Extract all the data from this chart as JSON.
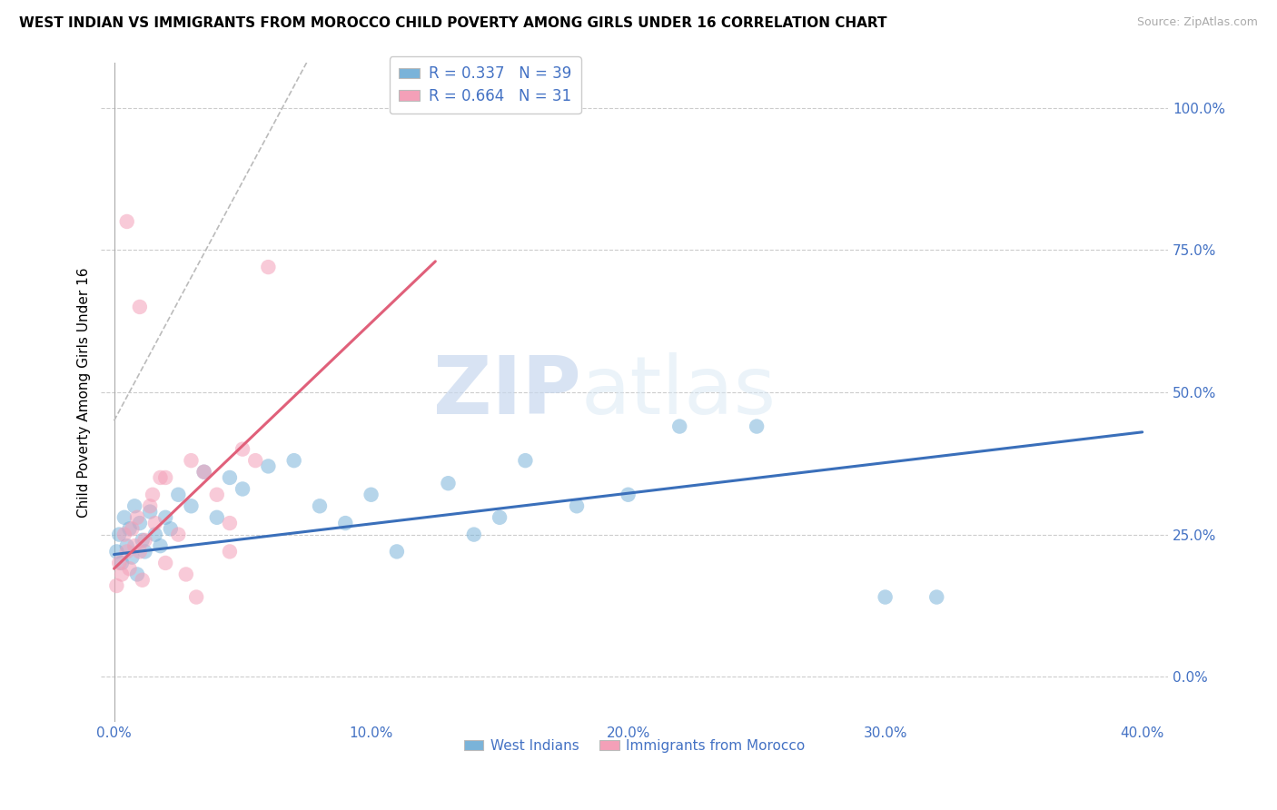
{
  "title": "WEST INDIAN VS IMMIGRANTS FROM MOROCCO CHILD POVERTY AMONG GIRLS UNDER 16 CORRELATION CHART",
  "source": "Source: ZipAtlas.com",
  "ylabel": "Child Poverty Among Girls Under 16",
  "xlabel_ticks": [
    "0.0%",
    "10.0%",
    "20.0%",
    "30.0%",
    "40.0%"
  ],
  "xlabel_vals": [
    0.0,
    10.0,
    20.0,
    30.0,
    40.0
  ],
  "ylabel_ticks": [
    "0.0%",
    "25.0%",
    "50.0%",
    "75.0%",
    "100.0%"
  ],
  "ylabel_vals": [
    0.0,
    25.0,
    50.0,
    75.0,
    100.0
  ],
  "xlim": [
    -0.5,
    41.0
  ],
  "ylim": [
    -8.0,
    108.0
  ],
  "blue_color": "#7ab3d9",
  "pink_color": "#f4a0b8",
  "blue_line_color": "#3a6fba",
  "pink_line_color": "#e0607a",
  "legend_r_blue": "R = 0.337",
  "legend_n_blue": "N = 39",
  "legend_r_pink": "R = 0.664",
  "legend_n_pink": "N = 31",
  "legend_label_blue": "West Indians",
  "legend_label_pink": "Immigrants from Morocco",
  "watermark_zip": "ZIP",
  "watermark_atlas": "atlas",
  "title_fontsize": 11,
  "blue_scatter_x": [
    0.1,
    0.2,
    0.3,
    0.4,
    0.5,
    0.6,
    0.7,
    0.8,
    0.9,
    1.0,
    1.1,
    1.2,
    1.4,
    1.6,
    1.8,
    2.0,
    2.2,
    2.5,
    3.0,
    3.5,
    4.0,
    4.5,
    5.0,
    6.0,
    7.0,
    8.0,
    9.0,
    10.0,
    11.0,
    13.0,
    14.0,
    15.0,
    16.0,
    18.0,
    20.0,
    22.0,
    25.0,
    30.0,
    32.0
  ],
  "blue_scatter_y": [
    22.0,
    25.0,
    20.0,
    28.0,
    23.0,
    26.0,
    21.0,
    30.0,
    18.0,
    27.0,
    24.0,
    22.0,
    29.0,
    25.0,
    23.0,
    28.0,
    26.0,
    32.0,
    30.0,
    36.0,
    28.0,
    35.0,
    33.0,
    37.0,
    38.0,
    30.0,
    27.0,
    32.0,
    22.0,
    34.0,
    25.0,
    28.0,
    38.0,
    30.0,
    32.0,
    44.0,
    44.0,
    14.0,
    14.0
  ],
  "pink_scatter_x": [
    0.1,
    0.2,
    0.3,
    0.4,
    0.5,
    0.6,
    0.7,
    0.8,
    0.9,
    1.0,
    1.1,
    1.2,
    1.4,
    1.6,
    2.0,
    2.5,
    3.0,
    3.5,
    4.0,
    4.5,
    5.0,
    5.5,
    6.0,
    1.5,
    2.0,
    2.8,
    3.2,
    1.0,
    4.5,
    1.8,
    0.5
  ],
  "pink_scatter_y": [
    16.0,
    20.0,
    18.0,
    25.0,
    22.0,
    19.0,
    26.0,
    23.0,
    28.0,
    22.0,
    17.0,
    24.0,
    30.0,
    27.0,
    35.0,
    25.0,
    38.0,
    36.0,
    32.0,
    27.0,
    40.0,
    38.0,
    72.0,
    32.0,
    20.0,
    18.0,
    14.0,
    65.0,
    22.0,
    35.0,
    80.0
  ],
  "blue_line_x0": 0.0,
  "blue_line_x1": 40.0,
  "blue_line_y0": 21.5,
  "blue_line_y1": 43.0,
  "pink_line_x0": 0.0,
  "pink_line_x1": 12.5,
  "pink_line_y0": 19.0,
  "pink_line_y1": 73.0,
  "pink_dash_x0": 0.0,
  "pink_dash_x1": 7.5,
  "pink_dash_y0": 45.0,
  "pink_dash_y1": 108.0
}
